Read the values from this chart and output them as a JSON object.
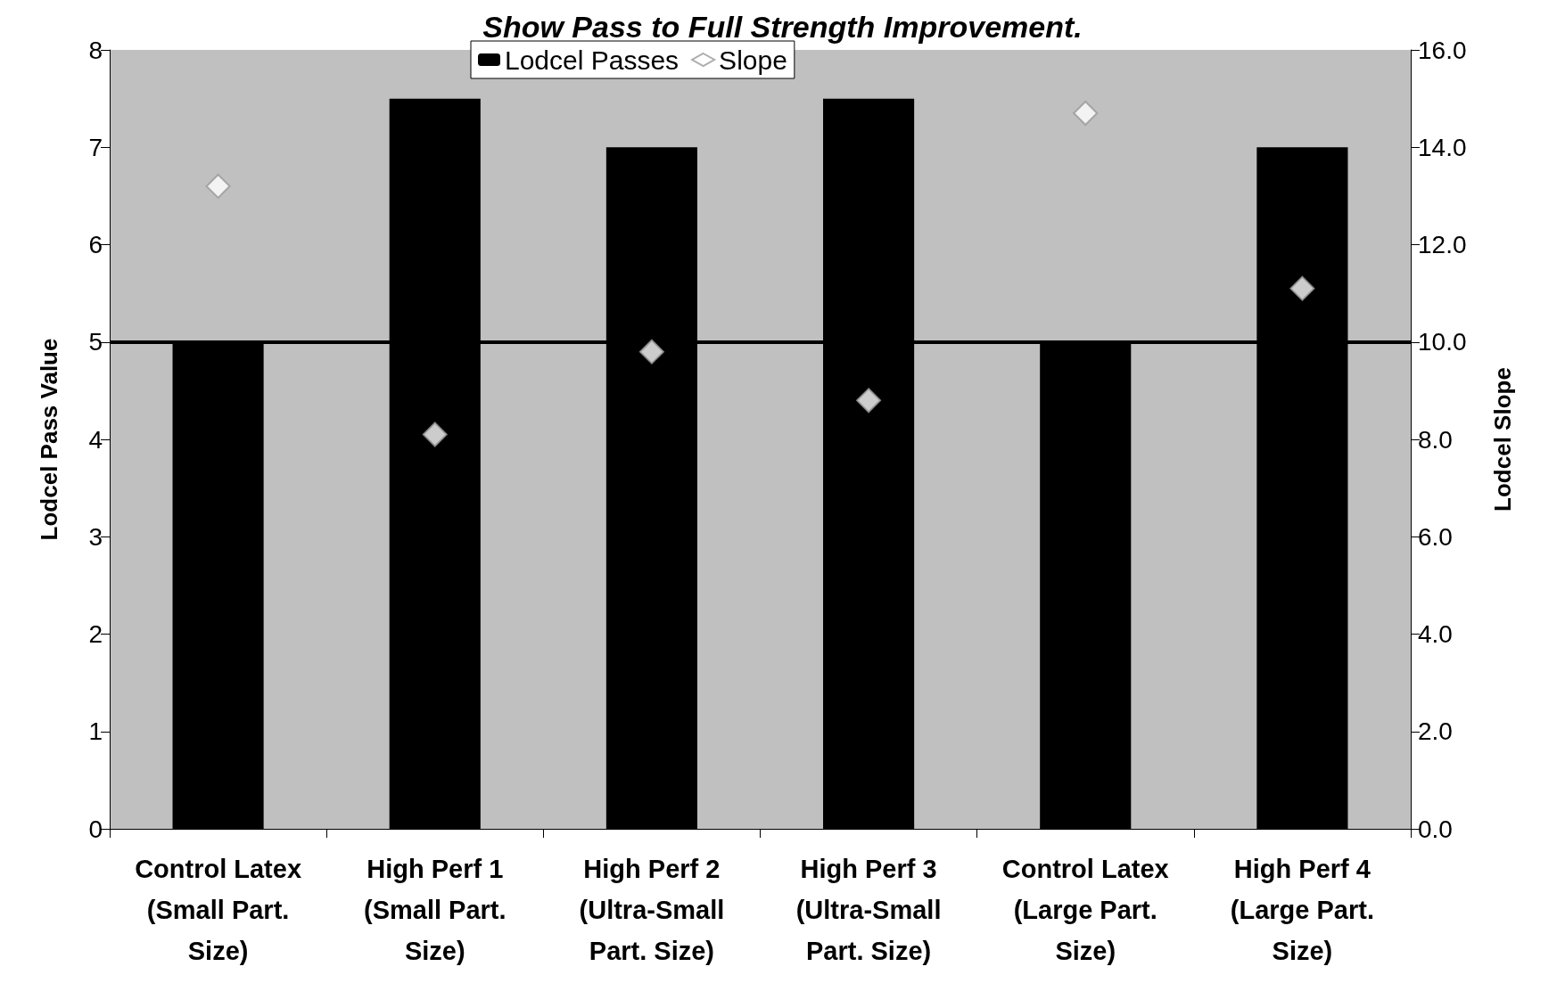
{
  "chart_data": {
    "type": "bar",
    "title": "Show Pass to Full Strength Improvement.",
    "ylabel": "Lodcel Pass Value",
    "y2label": "Lodcel Slope",
    "categories": [
      "Control Latex\n(Small Part.\nSize)",
      "High Perf 1\n(Small Part.\nSize)",
      "High Perf 2\n(Ultra-Small\nPart. Size)",
      "High Perf 3\n(Ultra-Small\nPart. Size)",
      "Control Latex\n(Large Part.\nSize)",
      "High Perf 4\n(Large Part.\nSize)"
    ],
    "series": [
      {
        "name": "Lodcel Passes",
        "color": "#000000",
        "values": [
          5,
          7.5,
          7,
          7.5,
          5,
          7
        ]
      },
      {
        "name": "Slope",
        "type": "scatter",
        "axis": "y2",
        "color": "#ffffff",
        "marker": "diamond",
        "values": [
          13.2,
          8.1,
          9.8,
          8.8,
          14.7,
          11.1
        ]
      }
    ],
    "ylim": [
      0,
      8
    ],
    "yticks": [
      0,
      1,
      2,
      3,
      4,
      5,
      6,
      7,
      8
    ],
    "y2lim": [
      0,
      16
    ],
    "y2ticks": [
      {
        "value": 0,
        "label": "0.0"
      },
      {
        "value": 2,
        "label": "2.0"
      },
      {
        "value": 4,
        "label": "4.0"
      },
      {
        "value": 6,
        "label": "6.0"
      },
      {
        "value": 8,
        "label": "8.0"
      },
      {
        "value": 10,
        "label": "10.0"
      },
      {
        "value": 12,
        "label": "12.0"
      },
      {
        "value": 14,
        "label": "14.0"
      },
      {
        "value": 16,
        "label": "16.0"
      }
    ],
    "ref_lines": [
      {
        "axis": "y",
        "value": 5,
        "color": "#000000"
      }
    ],
    "grid": false,
    "legend": "top"
  }
}
